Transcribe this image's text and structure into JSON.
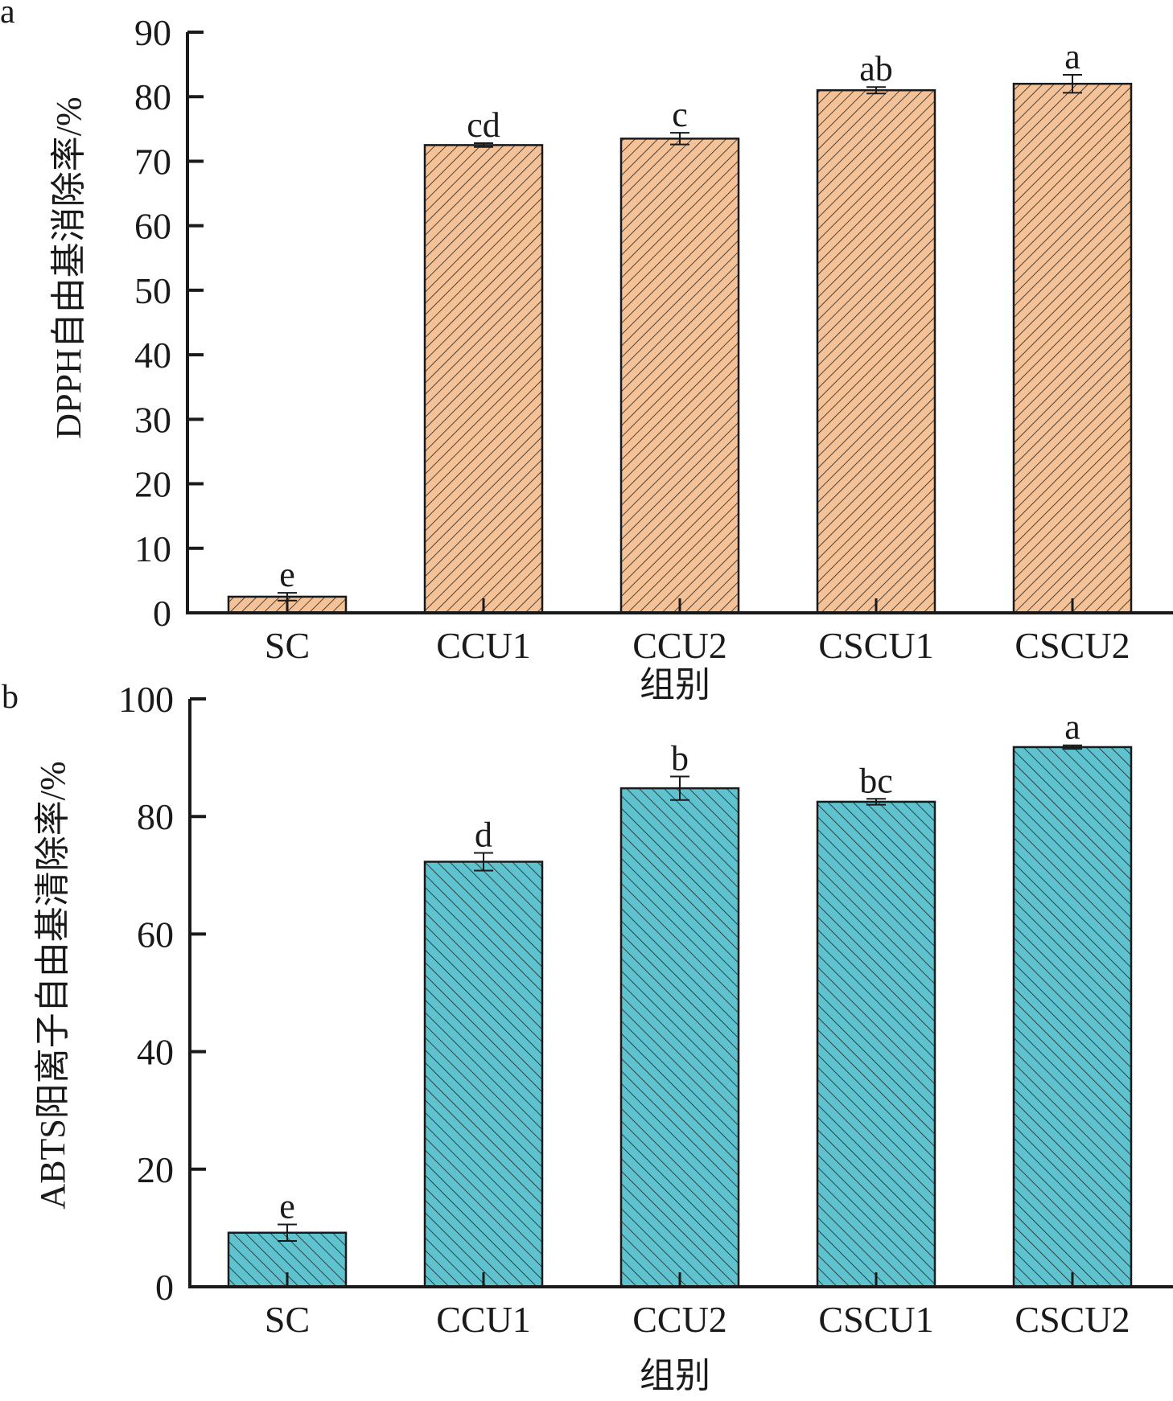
{
  "chart_data": [
    {
      "type": "bar",
      "panel_label": "a",
      "categories": [
        "SC",
        "CCU1",
        "CCU2",
        "CSCU1",
        "CSCU2"
      ],
      "values": [
        2.5,
        72.5,
        73.5,
        81.0,
        82.0
      ],
      "errors": [
        0.6,
        0.3,
        0.9,
        0.5,
        1.4
      ],
      "significance": [
        "e",
        "cd",
        "c",
        "ab",
        "a"
      ],
      "xlabel": "组别",
      "ylabel": "DPPH自由基消除率/%",
      "ylim": [
        0,
        90
      ],
      "yticks": [
        0,
        10,
        20,
        30,
        40,
        50,
        60,
        70,
        80,
        90
      ],
      "fill": "#f4c296",
      "hatch": "forward-diagonal",
      "grid": false
    },
    {
      "type": "bar",
      "panel_label": "b",
      "categories": [
        "SC",
        "CCU1",
        "CCU2",
        "CSCU1",
        "CSCU2"
      ],
      "values": [
        9.2,
        72.3,
        84.8,
        82.5,
        91.8
      ],
      "errors": [
        1.4,
        1.5,
        2.0,
        0.5,
        0.3
      ],
      "significance": [
        "e",
        "d",
        "b",
        "bc",
        "a"
      ],
      "xlabel": "组别",
      "ylabel": "ABTS阳离子自由基清除率/%",
      "ylim": [
        0,
        100
      ],
      "yticks": [
        0,
        20,
        40,
        60,
        80,
        100
      ],
      "fill": "#5ec3cf",
      "hatch": "back-diagonal",
      "grid": false
    }
  ]
}
